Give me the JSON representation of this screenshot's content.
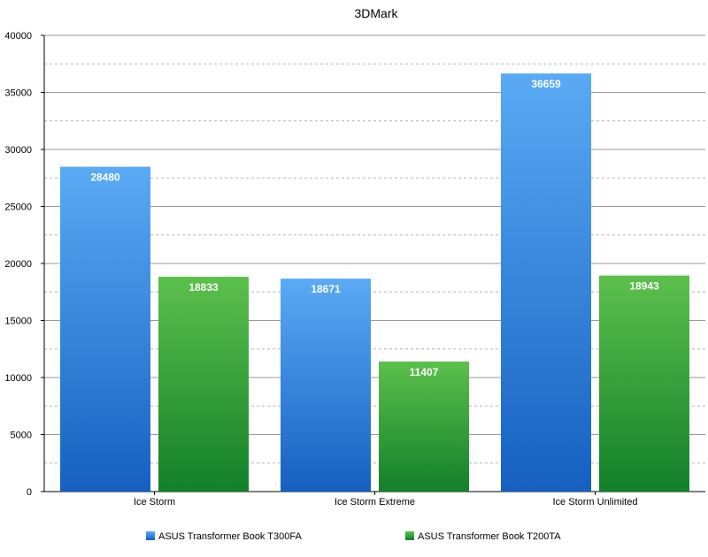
{
  "chart_data": {
    "type": "bar",
    "title": "3DMark",
    "categories": [
      "Ice Storm",
      "Ice Storm Extreme",
      "Ice Storm Unlimited"
    ],
    "series": [
      {
        "name": "ASUS Transformer Book T300FA",
        "values": [
          28480,
          18671,
          36659
        ],
        "color": "#3d8fe0"
      },
      {
        "name": "ASUS Transformer Book T200TA",
        "values": [
          18833,
          11407,
          18943
        ],
        "color": "#3aa43a"
      }
    ],
    "ylim": [
      0,
      40000
    ],
    "yticks": [
      0,
      5000,
      10000,
      15000,
      20000,
      25000,
      30000,
      35000,
      40000
    ],
    "grid": true,
    "legend_position": "bottom"
  }
}
